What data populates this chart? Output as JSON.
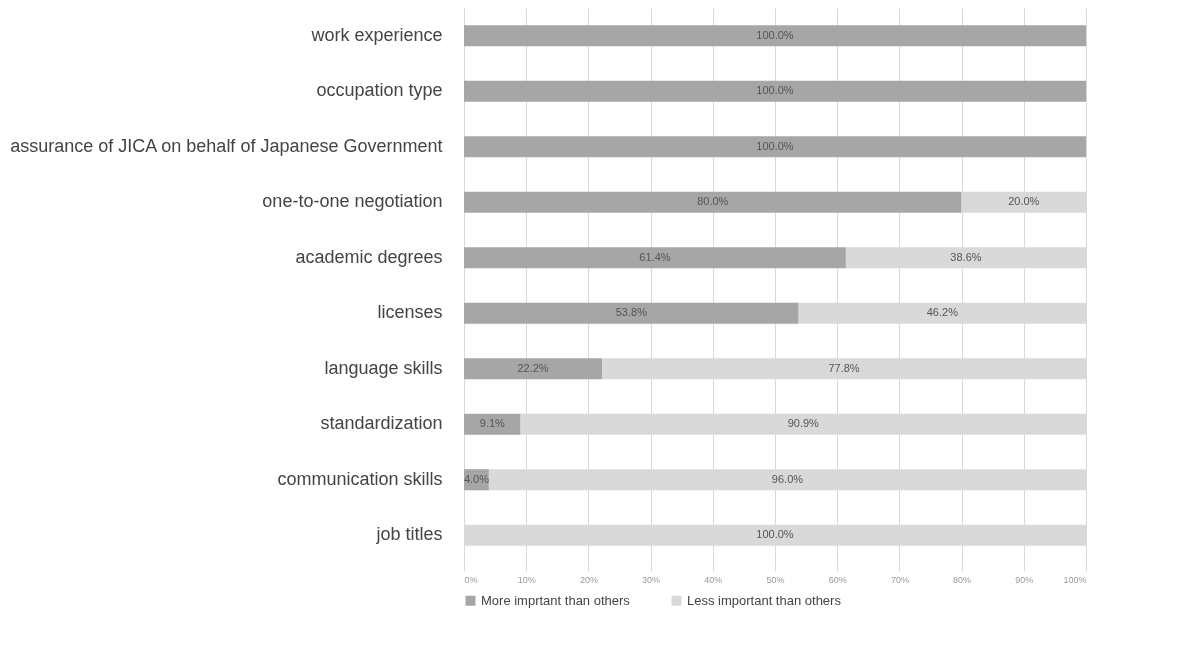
{
  "chart_data": {
    "type": "bar",
    "orientation": "horizontal",
    "stacked": true,
    "categories": [
      "work experience",
      "occupation type",
      "assurance of JICA on behalf of Japanese Government",
      "one-to-one negotiation",
      "academic degrees",
      "licenses",
      "language skills",
      "standardization",
      "communication skills",
      "job titles"
    ],
    "series": [
      {
        "name": "More imprtant than others",
        "color": "#a6a6a6",
        "values": [
          100,
          100,
          100,
          80,
          61.4,
          53.8,
          22.2,
          9.1,
          4,
          0
        ],
        "value_labels": [
          "100.0%",
          "100.0%",
          "100.0%",
          "80.0%",
          "61.4%",
          "53.8%",
          "22.2%",
          "9.1%",
          "4.0%",
          null
        ]
      },
      {
        "name": "Less important than others",
        "color": "#d9d9d9",
        "values": [
          0,
          0,
          0,
          20,
          38.6,
          46.2,
          77.8,
          90.9,
          96,
          100
        ],
        "value_labels": [
          null,
          null,
          null,
          "20.0%",
          "38.6%",
          "46.2%",
          "77.8%",
          "90.9%",
          "96.0%",
          "100.0%"
        ]
      }
    ],
    "xlim": [
      0,
      100
    ],
    "xticks": [
      {
        "value": 0,
        "label": "0%"
      },
      {
        "value": 10,
        "label": "10%"
      },
      {
        "value": 20,
        "label": "20%"
      },
      {
        "value": 30,
        "label": "30%"
      },
      {
        "value": 40,
        "label": "40%"
      },
      {
        "value": 50,
        "label": "50%"
      },
      {
        "value": 60,
        "label": "60%"
      },
      {
        "value": 70,
        "label": "70%"
      },
      {
        "value": 80,
        "label": "80%"
      },
      {
        "value": 90,
        "label": "90%"
      },
      {
        "value": 100,
        "label": "100%"
      }
    ],
    "grid": "x",
    "legend": "bottom"
  }
}
